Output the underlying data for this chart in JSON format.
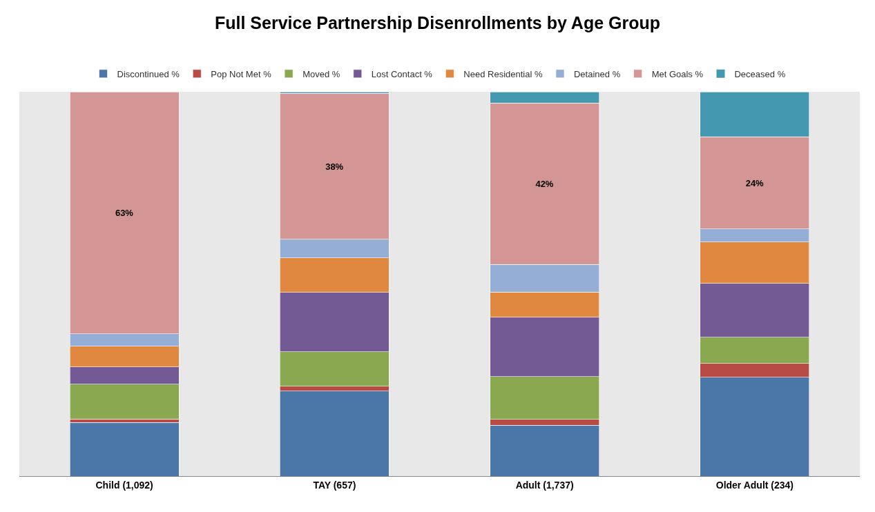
{
  "chart_data": {
    "type": "bar",
    "title": "Full Service Partnership Disenrollments by Age Group",
    "categories": [
      "Child (1,092)",
      "TAY (657)",
      "Adult (1,737)",
      "Older Adult (234)"
    ],
    "stacked": true,
    "ylim": [
      0,
      100
    ],
    "tick_labels": "x",
    "grid": false,
    "legend": "top",
    "series": [
      {
        "name": "Discontinued %",
        "color": "#4a76a8",
        "values": [
          14,
          22.1,
          13.2,
          25.7
        ]
      },
      {
        "name": "Pop Not Met %",
        "color": "#b84b45",
        "values": [
          0.9,
          1.3,
          1.6,
          3.6
        ]
      },
      {
        "name": "Moved %",
        "color": "#8aa84f",
        "values": [
          9,
          9,
          11.1,
          6.8
        ]
      },
      {
        "name": "Lost Contact %",
        "color": "#745a94",
        "values": [
          4.5,
          15.4,
          15.4,
          14
        ]
      },
      {
        "name": "Need Residential %",
        "color": "#e0883f",
        "values": [
          5.4,
          9,
          6.6,
          10.8
        ]
      },
      {
        "name": "Detained %",
        "color": "#95aed5",
        "values": [
          3.2,
          4.8,
          7.2,
          3.4
        ]
      },
      {
        "name": "Met Goals %",
        "color": "#d49694",
        "values": [
          63,
          38,
          42,
          24
        ],
        "value_labels": [
          "63%",
          "38%",
          "42%",
          "24%"
        ]
      },
      {
        "name": "Deceased %",
        "color": "#4499b0",
        "values": [
          0,
          0.4,
          2.9,
          11.7
        ]
      }
    ]
  }
}
